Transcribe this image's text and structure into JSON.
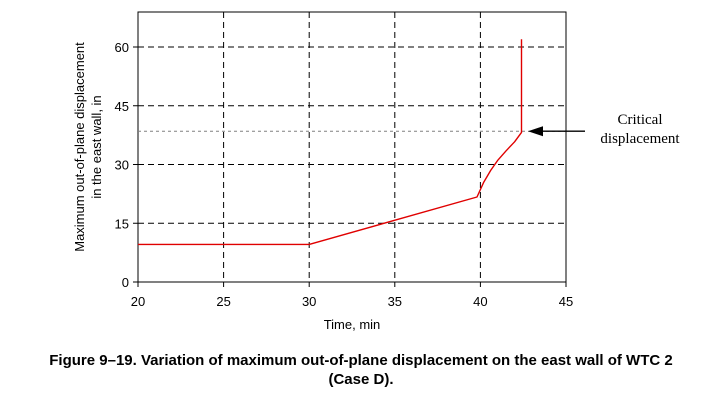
{
  "chart_data": {
    "type": "line",
    "xlabel": "Time, min",
    "ylabel_lines": [
      "Maximum out-of-plane displacement",
      "in the east wall, in"
    ],
    "xlim": [
      20,
      45
    ],
    "ylim": [
      0,
      67
    ],
    "x_ticks": [
      20,
      25,
      30,
      35,
      40,
      45
    ],
    "y_ticks": [
      0,
      15,
      30,
      45,
      60
    ],
    "grid": true,
    "series": [
      {
        "color": "#e00000",
        "points": [
          [
            20,
            9.6
          ],
          [
            30,
            9.6
          ],
          [
            39.8,
            21.7
          ],
          [
            40.2,
            25.5
          ],
          [
            40.6,
            28.5
          ],
          [
            41.0,
            31.0
          ],
          [
            41.5,
            33.5
          ],
          [
            42.0,
            35.8
          ],
          [
            42.4,
            38.2
          ],
          [
            42.4,
            50.0
          ],
          [
            42.4,
            62.0
          ]
        ]
      }
    ],
    "reference_line": {
      "y": 38.5,
      "style": "dashed",
      "color": "#808080"
    },
    "annotation": {
      "text_lines": [
        "Critical",
        "displacement"
      ],
      "target_y": 38.5
    }
  },
  "caption": {
    "line1": "Figure 9–19.  Variation of maximum out-of-plane displacement on the east wall of WTC 2",
    "line2": "(Case D)."
  }
}
